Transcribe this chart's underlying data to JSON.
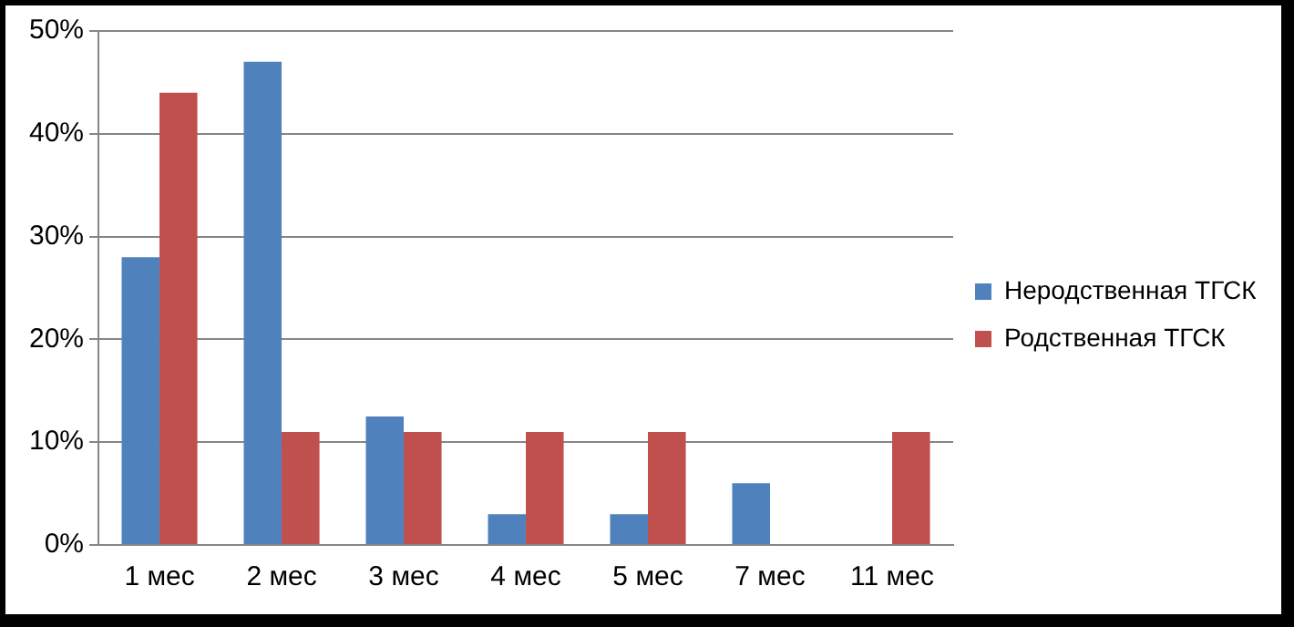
{
  "chart_data": {
    "type": "bar",
    "categories": [
      "1 мес",
      "2 мес",
      "3 мес",
      "4 мес",
      "5 мес",
      "7 мес",
      "11 мес"
    ],
    "series": [
      {
        "name": "Неродственная ТГСК",
        "color": "#4f81bd",
        "values": [
          28,
          47,
          12.5,
          3,
          3,
          6,
          0
        ]
      },
      {
        "name": "Родственная ТГСК",
        "color": "#c0504d",
        "values": [
          44,
          11,
          11,
          11,
          11,
          0,
          11
        ]
      }
    ],
    "ylim": [
      0,
      50
    ],
    "yticks": [
      {
        "value": 0,
        "label": "0%"
      },
      {
        "value": 10,
        "label": "10%"
      },
      {
        "value": 20,
        "label": "20%"
      },
      {
        "value": 30,
        "label": "30%"
      },
      {
        "value": 40,
        "label": "40%"
      },
      {
        "value": 50,
        "label": "50%"
      }
    ],
    "grid": "y",
    "legend": "right"
  }
}
